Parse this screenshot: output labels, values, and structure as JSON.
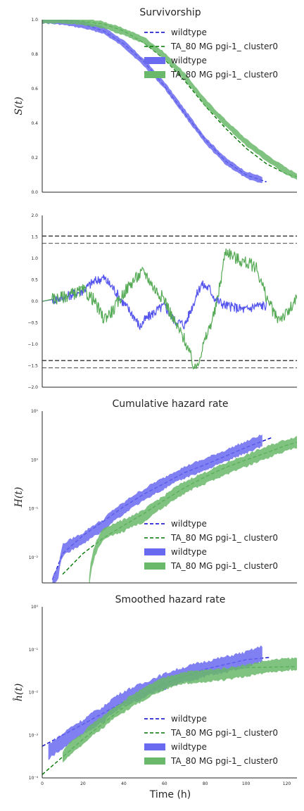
{
  "chart_data": [
    {
      "type": "line",
      "title": "Survivorship",
      "ylabel": "S(t)",
      "xlim": [
        0,
        125
      ],
      "ylim": [
        0,
        1
      ],
      "yticks": [
        "0.0",
        "0.2",
        "0.4",
        "0.6",
        "0.8",
        "1.0"
      ],
      "legend": {
        "placement": "top-right",
        "entries": [
          {
            "label": "wildtype",
            "style": "dashed",
            "color": "#0000cc"
          },
          {
            "label": "TA_80 MG pgi-1_ cluster0",
            "style": "dashed",
            "color": "#007700"
          },
          {
            "label": "wildtype",
            "style": "band",
            "color": "#6a6af0"
          },
          {
            "label": "TA_80 MG pgi-1_ cluster0",
            "style": "band",
            "color": "#6ab86a"
          }
        ]
      },
      "series": [
        {
          "name": "wildtype",
          "kind": "fit",
          "color": "#0000cc",
          "points": [
            [
              0,
              1
            ],
            [
              10,
              0.995
            ],
            [
              20,
              0.975
            ],
            [
              30,
              0.935
            ],
            [
              40,
              0.86
            ],
            [
              50,
              0.755
            ],
            [
              60,
              0.615
            ],
            [
              70,
              0.455
            ],
            [
              80,
              0.305
            ],
            [
              90,
              0.18
            ],
            [
              100,
              0.1
            ],
            [
              110,
              0.06
            ]
          ]
        },
        {
          "name": "TA_80 MG pgi-1_ cluster0",
          "kind": "fit",
          "color": "#007700",
          "points": [
            [
              0,
              1
            ],
            [
              10,
              1
            ],
            [
              20,
              0.99
            ],
            [
              30,
              0.975
            ],
            [
              40,
              0.935
            ],
            [
              50,
              0.865
            ],
            [
              60,
              0.77
            ],
            [
              70,
              0.645
            ],
            [
              80,
              0.5
            ],
            [
              90,
              0.37
            ],
            [
              100,
              0.255
            ],
            [
              110,
              0.165
            ],
            [
              120,
              0.105
            ],
            [
              125,
              0.09
            ]
          ]
        },
        {
          "name": "wildtype",
          "kind": "band",
          "color": "#6a6af0",
          "points": [
            [
              0,
              1
            ],
            [
              10,
              0.99
            ],
            [
              20,
              0.97
            ],
            [
              30,
              0.94
            ],
            [
              40,
              0.86
            ],
            [
              50,
              0.75
            ],
            [
              60,
              0.62
            ],
            [
              70,
              0.46
            ],
            [
              80,
              0.3
            ],
            [
              90,
              0.18
            ],
            [
              100,
              0.1
            ],
            [
              108,
              0.07
            ]
          ],
          "width": 0.02
        },
        {
          "name": "TA_80 MG pgi-1_ cluster0",
          "kind": "band",
          "color": "#6ab86a",
          "points": [
            [
              0,
              1
            ],
            [
              10,
              1
            ],
            [
              20,
              0.99
            ],
            [
              30,
              0.97
            ],
            [
              40,
              0.93
            ],
            [
              50,
              0.88
            ],
            [
              60,
              0.79
            ],
            [
              70,
              0.67
            ],
            [
              80,
              0.52
            ],
            [
              90,
              0.4
            ],
            [
              100,
              0.29
            ],
            [
              110,
              0.2
            ],
            [
              120,
              0.12
            ],
            [
              125,
              0.09
            ]
          ],
          "width": 0.02
        }
      ]
    },
    {
      "type": "line",
      "ylim": [
        -2,
        2
      ],
      "xlim": [
        0,
        125
      ],
      "yticks": [
        "−2.0",
        "−1.5",
        "−1.0",
        "−0.5",
        "0.0",
        "0.5",
        "1.0",
        "1.5",
        "2.0"
      ],
      "hlines": [
        1.52,
        1.35,
        -1.38,
        -1.55
      ],
      "series": [
        {
          "name": "wildtype",
          "color": "#5555ee",
          "points": [
            [
              0,
              0
            ],
            [
              10,
              0.08
            ],
            [
              20,
              0.25
            ],
            [
              25,
              0.45
            ],
            [
              30,
              0.55
            ],
            [
              35,
              0.3
            ],
            [
              40,
              -0.05
            ],
            [
              45,
              -0.35
            ],
            [
              48,
              -0.6
            ],
            [
              50,
              -0.45
            ],
            [
              55,
              -0.25
            ],
            [
              60,
              -0.1
            ],
            [
              65,
              -0.45
            ],
            [
              70,
              -0.55
            ],
            [
              75,
              0.05
            ],
            [
              78,
              0.4
            ],
            [
              82,
              0.3
            ],
            [
              85,
              0.05
            ],
            [
              90,
              -0.1
            ],
            [
              95,
              -0.15
            ],
            [
              100,
              -0.2
            ],
            [
              105,
              -0.1
            ],
            [
              110,
              -0.1
            ]
          ],
          "jitter": 0.12
        },
        {
          "name": "TA_80 MG pgi-1_ cluster0",
          "color": "#55aa55",
          "points": [
            [
              0,
              0
            ],
            [
              10,
              0.1
            ],
            [
              20,
              0.25
            ],
            [
              25,
              0.05
            ],
            [
              30,
              -0.4
            ],
            [
              35,
              -0.2
            ],
            [
              40,
              0.2
            ],
            [
              45,
              0.5
            ],
            [
              50,
              0.7
            ],
            [
              55,
              0.3
            ],
            [
              60,
              0.05
            ],
            [
              65,
              -0.5
            ],
            [
              70,
              -0.9
            ],
            [
              75,
              -1.6
            ],
            [
              80,
              -0.9
            ],
            [
              85,
              -0.2
            ],
            [
              88,
              0.6
            ],
            [
              90,
              1.2
            ],
            [
              95,
              1.0
            ],
            [
              100,
              0.9
            ],
            [
              105,
              0.8
            ],
            [
              110,
              0.1
            ],
            [
              115,
              -0.4
            ],
            [
              120,
              -0.3
            ],
            [
              125,
              0.05
            ]
          ],
          "jitter": 0.15
        }
      ]
    },
    {
      "type": "line",
      "title": "Cumulative hazard rate",
      "ylabel": "H(t)",
      "yscale": "log",
      "xlim": [
        0,
        125
      ],
      "ylim": [
        0.003,
        10
      ],
      "yticks": [
        "10⁻²",
        "10⁻¹",
        "10⁰",
        "10¹"
      ],
      "ytick_values": [
        0.01,
        0.1,
        1,
        10
      ],
      "legend": {
        "placement": "lower-right",
        "entries": [
          {
            "label": "wildtype",
            "style": "dashed",
            "color": "#0000cc"
          },
          {
            "label": "TA_80 MG pgi-1_ cluster0",
            "style": "dashed",
            "color": "#007700"
          },
          {
            "label": "wildtype",
            "style": "band",
            "color": "#6a6af0"
          },
          {
            "label": "TA_80 MG pgi-1_ cluster0",
            "style": "band",
            "color": "#6ab86a"
          }
        ]
      },
      "series": [
        {
          "name": "wildtype",
          "kind": "fit",
          "color": "#0000cc",
          "points": [
            [
              5,
              0.0035
            ],
            [
              10,
              0.012
            ],
            [
              20,
              0.028
            ],
            [
              30,
              0.055
            ],
            [
              40,
              0.11
            ],
            [
              50,
              0.2
            ],
            [
              60,
              0.33
            ],
            [
              70,
              0.55
            ],
            [
              80,
              0.8
            ],
            [
              90,
              1.2
            ],
            [
              100,
              1.8
            ],
            [
              110,
              2.6
            ],
            [
              113,
              2.9
            ]
          ]
        },
        {
          "name": "TA_80 MG pgi-1_ cluster0",
          "kind": "fit",
          "color": "#007700",
          "points": [
            [
              10,
              0.0045
            ],
            [
              20,
              0.012
            ],
            [
              30,
              0.025
            ],
            [
              40,
              0.045
            ],
            [
              50,
              0.08
            ],
            [
              60,
              0.15
            ],
            [
              70,
              0.27
            ],
            [
              80,
              0.45
            ],
            [
              90,
              0.7
            ],
            [
              100,
              1.0
            ],
            [
              110,
              1.4
            ],
            [
              120,
              2.0
            ],
            [
              125,
              2.3
            ]
          ]
        },
        {
          "name": "wildtype",
          "kind": "band",
          "color": "#6a6af0",
          "points": [
            [
              5,
              0.003
            ],
            [
              8,
              0.005
            ],
            [
              10,
              0.014
            ],
            [
              20,
              0.024
            ],
            [
              30,
              0.045
            ],
            [
              40,
              0.1
            ],
            [
              50,
              0.19
            ],
            [
              60,
              0.33
            ],
            [
              70,
              0.55
            ],
            [
              80,
              0.8
            ],
            [
              90,
              1.2
            ],
            [
              100,
              1.8
            ],
            [
              108,
              2.5
            ]
          ],
          "width": 0.12
        },
        {
          "name": "TA_80 MG pgi-1_ cluster0",
          "kind": "band",
          "color": "#6ab86a",
          "points": [
            [
              23,
              0.003
            ],
            [
              25,
              0.01
            ],
            [
              30,
              0.03
            ],
            [
              40,
              0.045
            ],
            [
              50,
              0.07
            ],
            [
              60,
              0.14
            ],
            [
              70,
              0.27
            ],
            [
              80,
              0.42
            ],
            [
              90,
              0.65
            ],
            [
              100,
              0.95
            ],
            [
              110,
              1.4
            ],
            [
              120,
              2.0
            ],
            [
              125,
              2.3
            ]
          ],
          "width": 0.12
        }
      ]
    },
    {
      "type": "line",
      "title": "Smoothed hazard rate",
      "ylabel": "ĥ(t)",
      "xlabel": "Time (h)",
      "yscale": "log",
      "xlim": [
        0,
        125
      ],
      "ylim": [
        0.0001,
        1
      ],
      "xticks": [
        "0",
        "20",
        "40",
        "60",
        "80",
        "100",
        "120"
      ],
      "xtick_values": [
        0,
        20,
        40,
        60,
        80,
        100,
        120
      ],
      "yticks": [
        "10⁻⁴",
        "10⁻³",
        "10⁻²",
        "10⁻¹",
        "10⁰"
      ],
      "ytick_values": [
        0.0001,
        0.001,
        0.01,
        0.1,
        1
      ],
      "legend": {
        "placement": "lower-right",
        "entries": [
          {
            "label": "wildtype",
            "style": "dashed",
            "color": "#0000cc"
          },
          {
            "label": "TA_80 MG pgi-1_ cluster0",
            "style": "dashed",
            "color": "#007700"
          },
          {
            "label": "wildtype",
            "style": "band",
            "color": "#6a6af0"
          },
          {
            "label": "TA_80 MG pgi-1_ cluster0",
            "style": "band",
            "color": "#6ab86a"
          }
        ]
      },
      "series": [
        {
          "name": "wildtype",
          "kind": "fit",
          "color": "#0000cc",
          "points": [
            [
              0,
              0.00055
            ],
            [
              20,
              0.0018
            ],
            [
              40,
              0.006
            ],
            [
              60,
              0.016
            ],
            [
              80,
              0.035
            ],
            [
              100,
              0.058
            ],
            [
              112,
              0.066
            ]
          ]
        },
        {
          "name": "TA_80 MG pgi-1_ cluster0",
          "kind": "fit",
          "color": "#007700",
          "points": [
            [
              0,
              0.00012
            ],
            [
              20,
              0.0008
            ],
            [
              40,
              0.0045
            ],
            [
              60,
              0.016
            ],
            [
              70,
              0.024
            ],
            [
              80,
              0.029
            ],
            [
              100,
              0.038
            ],
            [
              125,
              0.04
            ]
          ]
        },
        {
          "name": "wildtype",
          "kind": "band",
          "color": "#6a6af0",
          "points": [
            [
              3,
              0.0004
            ],
            [
              10,
              0.0007
            ],
            [
              20,
              0.0015
            ],
            [
              30,
              0.003
            ],
            [
              40,
              0.007
            ],
            [
              50,
              0.011
            ],
            [
              60,
              0.018
            ],
            [
              70,
              0.026
            ],
            [
              80,
              0.035
            ],
            [
              90,
              0.045
            ],
            [
              100,
              0.058
            ],
            [
              108,
              0.08
            ]
          ],
          "width": 0.18
        },
        {
          "name": "TA_80 MG pgi-1_ cluster0",
          "kind": "band",
          "color": "#6ab86a",
          "points": [
            [
              10,
              0.0003
            ],
            [
              20,
              0.0008
            ],
            [
              30,
              0.002
            ],
            [
              40,
              0.0045
            ],
            [
              50,
              0.009
            ],
            [
              60,
              0.016
            ],
            [
              70,
              0.022
            ],
            [
              80,
              0.024
            ],
            [
              90,
              0.027
            ],
            [
              100,
              0.032
            ],
            [
              110,
              0.04
            ],
            [
              120,
              0.045
            ],
            [
              125,
              0.046
            ]
          ],
          "width": 0.14
        }
      ]
    }
  ]
}
